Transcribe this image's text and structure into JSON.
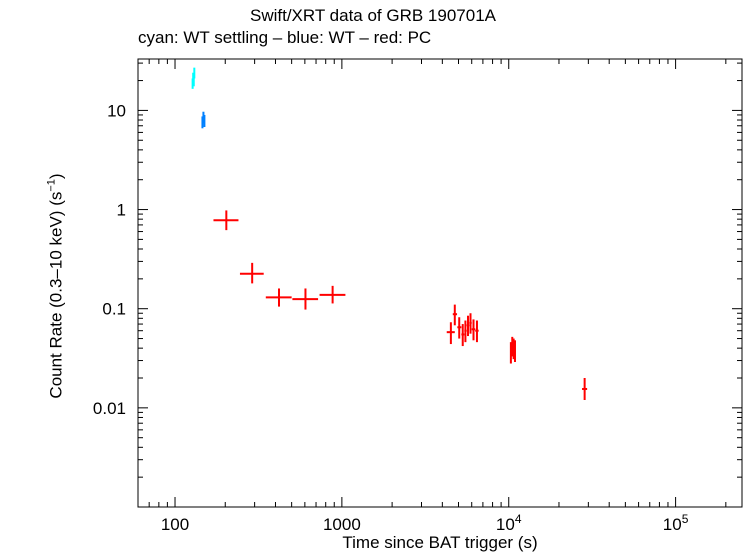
{
  "chart_data": {
    "type": "scatter",
    "title": "Swift/XRT data of GRB 190701A",
    "subtitle": "cyan: WT settling – blue: WT – red: PC",
    "xlabel": "Time since BAT trigger (s)",
    "ylabel_main": "Count Rate (0.3–10 keV) (s",
    "ylabel_sup": "−1",
    "ylabel_end": ")",
    "x_scale": "log",
    "y_scale": "log",
    "xlim": [
      60,
      250000
    ],
    "ylim": [
      0.001,
      33
    ],
    "x_ticks": [
      {
        "value": 100,
        "label": "100"
      },
      {
        "value": 1000,
        "label": "1000"
      },
      {
        "value": 10000,
        "base": "10",
        "exp": "4"
      },
      {
        "value": 100000,
        "base": "10",
        "exp": "5"
      }
    ],
    "y_ticks": [
      {
        "value": 0.01,
        "label": "0.01"
      },
      {
        "value": 0.1,
        "label": "0.1"
      },
      {
        "value": 1,
        "label": "1"
      },
      {
        "value": 10,
        "label": "10"
      }
    ],
    "series": [
      {
        "color": "#00ffff",
        "points": [
          {
            "x": 127.5,
            "y": 18.5,
            "xlo": 127,
            "xhi": 128,
            "ylo": 16.5,
            "yhi": 21
          },
          {
            "x": 128.5,
            "y": 21.5,
            "xlo": 128,
            "xhi": 129,
            "ylo": 19,
            "yhi": 24
          },
          {
            "x": 129.5,
            "y": 20.0,
            "xlo": 129,
            "xhi": 130,
            "ylo": 17.5,
            "yhi": 22.5
          },
          {
            "x": 130.5,
            "y": 23.5,
            "xlo": 130,
            "xhi": 131,
            "ylo": 21,
            "yhi": 27
          }
        ]
      },
      {
        "color": "#0080ff",
        "points": [
          {
            "x": 146,
            "y": 7.6,
            "xlo": 145,
            "xhi": 147,
            "ylo": 6.6,
            "yhi": 8.7
          },
          {
            "x": 148,
            "y": 8.5,
            "xlo": 147,
            "xhi": 149,
            "ylo": 7.4,
            "yhi": 9.7
          },
          {
            "x": 150,
            "y": 7.9,
            "xlo": 149,
            "xhi": 151,
            "ylo": 6.8,
            "yhi": 9.0
          }
        ]
      },
      {
        "color": "#ff0000",
        "points": [
          {
            "x": 203,
            "y": 0.78,
            "xlo": 170,
            "xhi": 240,
            "ylo": 0.62,
            "yhi": 0.98
          },
          {
            "x": 290,
            "y": 0.225,
            "xlo": 245,
            "xhi": 340,
            "ylo": 0.18,
            "yhi": 0.29
          },
          {
            "x": 420,
            "y": 0.13,
            "xlo": 350,
            "xhi": 500,
            "ylo": 0.105,
            "yhi": 0.16
          },
          {
            "x": 605,
            "y": 0.125,
            "xlo": 505,
            "xhi": 720,
            "ylo": 0.098,
            "yhi": 0.16
          },
          {
            "x": 880,
            "y": 0.138,
            "xlo": 735,
            "xhi": 1050,
            "ylo": 0.113,
            "yhi": 0.17
          },
          {
            "x": 4500,
            "y": 0.058,
            "xlo": 4250,
            "xhi": 4750,
            "ylo": 0.044,
            "yhi": 0.073
          },
          {
            "x": 4750,
            "y": 0.088,
            "xlo": 4620,
            "xhi": 4900,
            "ylo": 0.068,
            "yhi": 0.11
          },
          {
            "x": 5050,
            "y": 0.065,
            "xlo": 4920,
            "xhi": 5200,
            "ylo": 0.05,
            "yhi": 0.082
          },
          {
            "x": 5300,
            "y": 0.055,
            "xlo": 5200,
            "xhi": 5420,
            "ylo": 0.042,
            "yhi": 0.07
          },
          {
            "x": 5500,
            "y": 0.06,
            "xlo": 5420,
            "xhi": 5600,
            "ylo": 0.046,
            "yhi": 0.076
          },
          {
            "x": 5700,
            "y": 0.068,
            "xlo": 5600,
            "xhi": 5800,
            "ylo": 0.053,
            "yhi": 0.085
          },
          {
            "x": 5900,
            "y": 0.072,
            "xlo": 5800,
            "xhi": 6000,
            "ylo": 0.056,
            "yhi": 0.09
          },
          {
            "x": 6150,
            "y": 0.062,
            "xlo": 6000,
            "xhi": 6300,
            "ylo": 0.048,
            "yhi": 0.078
          },
          {
            "x": 6450,
            "y": 0.06,
            "xlo": 6300,
            "xhi": 6600,
            "ylo": 0.046,
            "yhi": 0.076
          },
          {
            "x": 10300,
            "y": 0.036,
            "xlo": 10200,
            "xhi": 10400,
            "ylo": 0.028,
            "yhi": 0.046
          },
          {
            "x": 10500,
            "y": 0.042,
            "xlo": 10400,
            "xhi": 10600,
            "ylo": 0.033,
            "yhi": 0.052
          },
          {
            "x": 10700,
            "y": 0.04,
            "xlo": 10600,
            "xhi": 10800,
            "ylo": 0.031,
            "yhi": 0.05
          },
          {
            "x": 10900,
            "y": 0.038,
            "xlo": 10800,
            "xhi": 11000,
            "ylo": 0.029,
            "yhi": 0.048
          },
          {
            "x": 28500,
            "y": 0.0155,
            "xlo": 27500,
            "xhi": 29500,
            "ylo": 0.012,
            "yhi": 0.02
          }
        ]
      }
    ]
  }
}
